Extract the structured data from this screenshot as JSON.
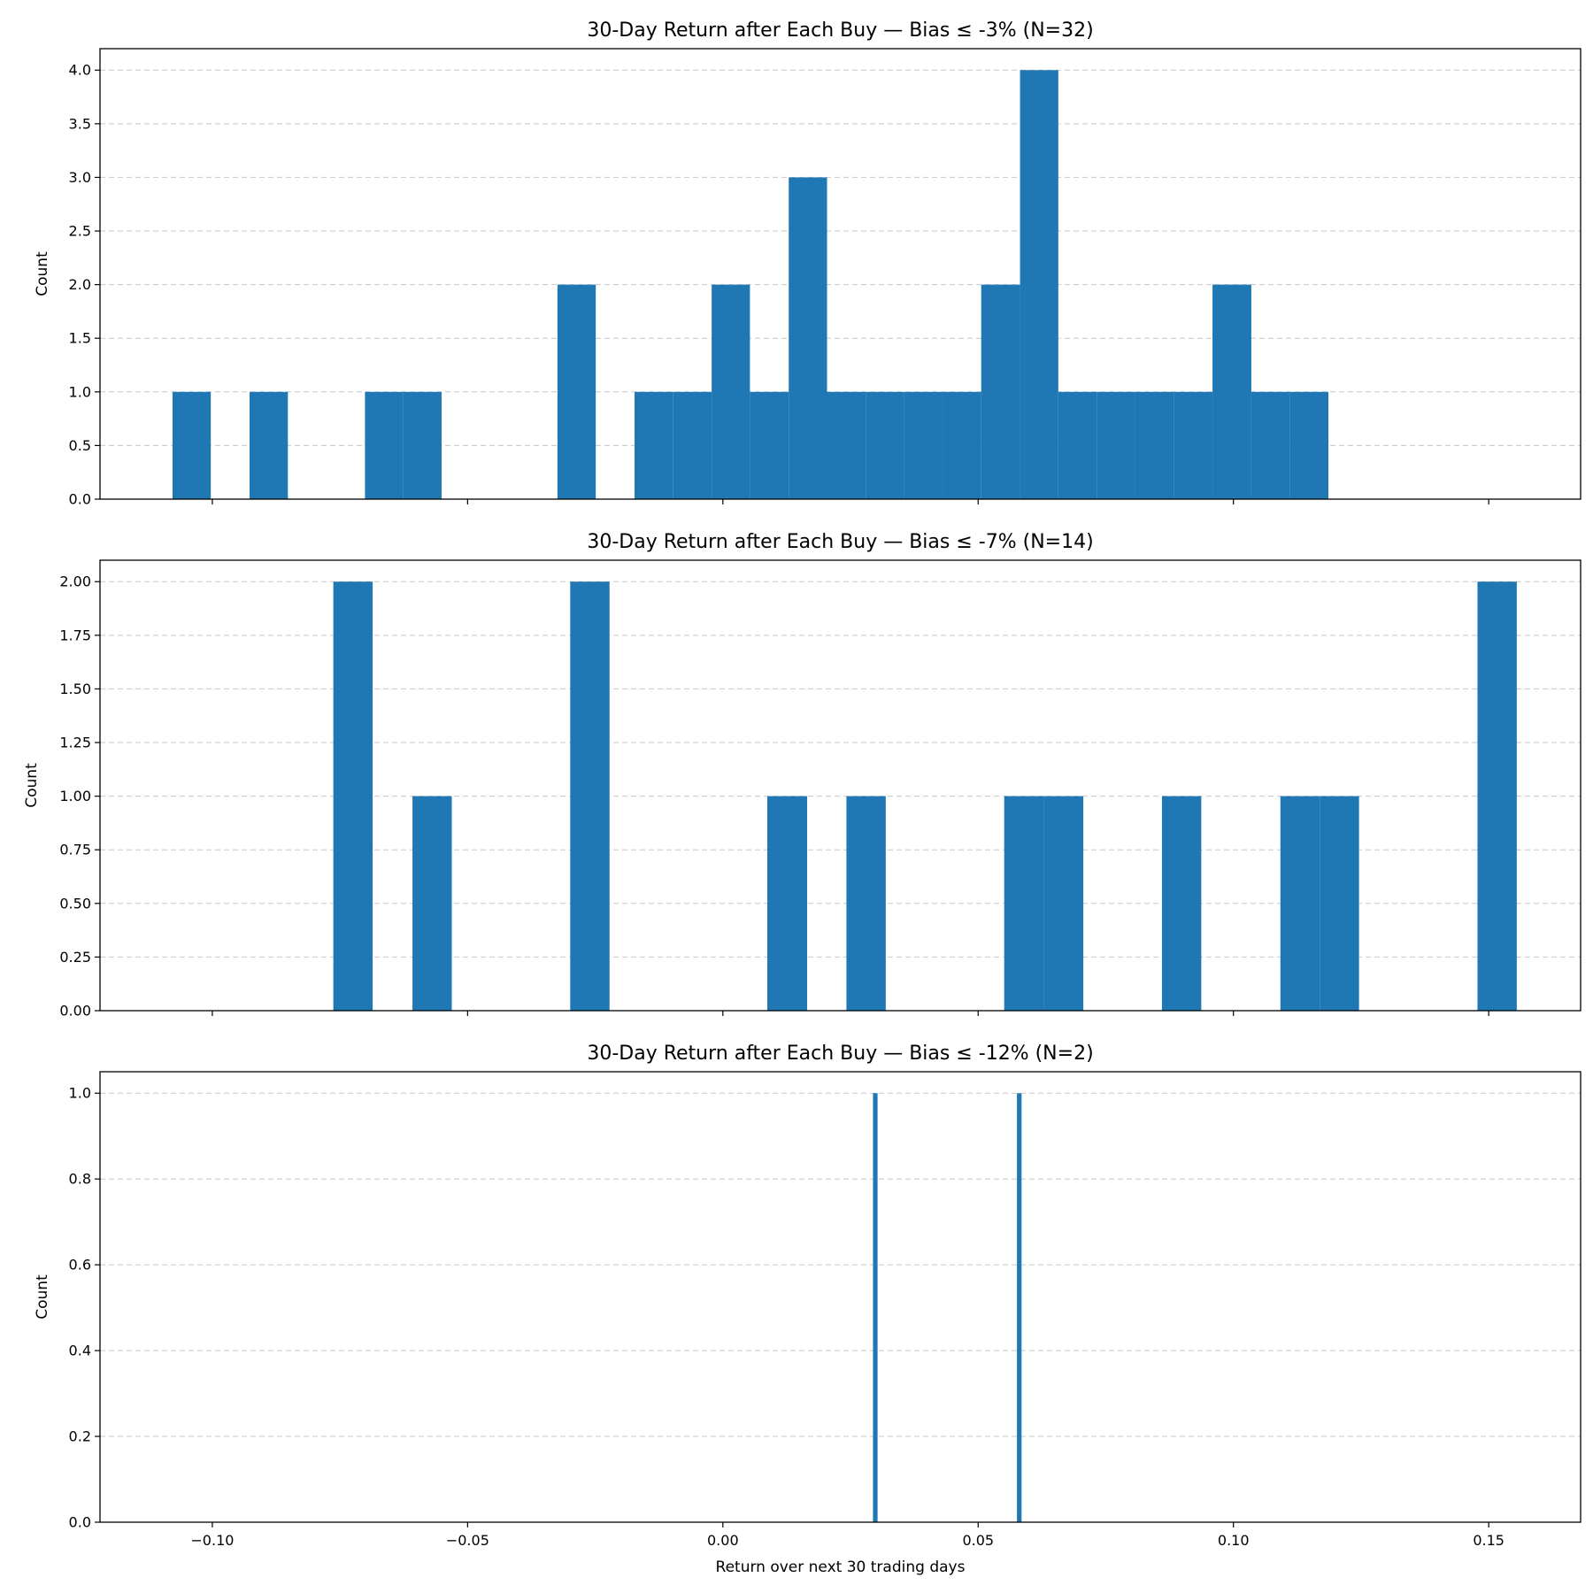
{
  "chart_data": [
    {
      "type": "bar",
      "title": "30-Day Return after Each Buy — Bias ≤ -3% (N=32)",
      "xlabel": "",
      "ylabel": "Count",
      "xlim": [
        -0.122,
        0.168
      ],
      "ylim": [
        0,
        4.2
      ],
      "yticks": [
        "0.0",
        "0.5",
        "1.0",
        "1.5",
        "2.0",
        "2.5",
        "3.0",
        "3.5",
        "4.0"
      ],
      "xticks": [
        "−0.10",
        "−0.05",
        "0.00",
        "0.05",
        "0.10",
        "0.15"
      ],
      "show_xtick_labels": false,
      "grid": "y-dashed",
      "bar_color": "#1f77b4",
      "bins": [
        {
          "x0": -0.1078,
          "x1": -0.1003,
          "count": 1
        },
        {
          "x0": -0.0927,
          "x1": -0.0852,
          "count": 1
        },
        {
          "x0": -0.0701,
          "x1": -0.0626,
          "count": 1
        },
        {
          "x0": -0.0626,
          "x1": -0.0551,
          "count": 1
        },
        {
          "x0": -0.0324,
          "x1": -0.0249,
          "count": 2
        },
        {
          "x0": -0.0173,
          "x1": -0.0098,
          "count": 1
        },
        {
          "x0": -0.0098,
          "x1": -0.0022,
          "count": 1
        },
        {
          "x0": -0.0022,
          "x1": 0.0053,
          "count": 2
        },
        {
          "x0": 0.0053,
          "x1": 0.0129,
          "count": 1
        },
        {
          "x0": 0.0129,
          "x1": 0.0204,
          "count": 3
        },
        {
          "x0": 0.0204,
          "x1": 0.028,
          "count": 1
        },
        {
          "x0": 0.028,
          "x1": 0.0355,
          "count": 1
        },
        {
          "x0": 0.0355,
          "x1": 0.0431,
          "count": 1
        },
        {
          "x0": 0.0431,
          "x1": 0.0506,
          "count": 1
        },
        {
          "x0": 0.0506,
          "x1": 0.0582,
          "count": 2
        },
        {
          "x0": 0.0582,
          "x1": 0.0657,
          "count": 4
        },
        {
          "x0": 0.0657,
          "x1": 0.0733,
          "count": 1
        },
        {
          "x0": 0.0733,
          "x1": 0.0808,
          "count": 1
        },
        {
          "x0": 0.0808,
          "x1": 0.0884,
          "count": 1
        },
        {
          "x0": 0.0884,
          "x1": 0.0959,
          "count": 1
        },
        {
          "x0": 0.0959,
          "x1": 0.1035,
          "count": 2
        },
        {
          "x0": 0.1035,
          "x1": 0.111,
          "count": 1
        },
        {
          "x0": 0.111,
          "x1": 0.1186,
          "count": 1
        }
      ]
    },
    {
      "type": "bar",
      "title": "30-Day Return after Each Buy — Bias ≤ -7% (N=14)",
      "xlabel": "",
      "ylabel": "Count",
      "xlim": [
        -0.122,
        0.168
      ],
      "ylim": [
        0,
        2.1
      ],
      "yticks": [
        "0.00",
        "0.25",
        "0.50",
        "0.75",
        "1.00",
        "1.25",
        "1.50",
        "1.75",
        "2.00"
      ],
      "xticks": [
        "−0.10",
        "−0.05",
        "0.00",
        "0.05",
        "0.10",
        "0.15"
      ],
      "show_xtick_labels": false,
      "grid": "y-dashed",
      "bar_color": "#1f77b4",
      "bins": [
        {
          "x0": -0.0763,
          "x1": -0.0686,
          "count": 2
        },
        {
          "x0": -0.0608,
          "x1": -0.0531,
          "count": 1
        },
        {
          "x0": -0.0299,
          "x1": -0.0222,
          "count": 2
        },
        {
          "x0": 0.0087,
          "x1": 0.0165,
          "count": 1
        },
        {
          "x0": 0.0242,
          "x1": 0.0319,
          "count": 1
        },
        {
          "x0": 0.0551,
          "x1": 0.0628,
          "count": 1
        },
        {
          "x0": 0.0628,
          "x1": 0.0706,
          "count": 1
        },
        {
          "x0": 0.086,
          "x1": 0.0937,
          "count": 1
        },
        {
          "x0": 0.1092,
          "x1": 0.1169,
          "count": 1
        },
        {
          "x0": 0.1169,
          "x1": 0.1246,
          "count": 1
        },
        {
          "x0": 0.1478,
          "x1": 0.1555,
          "count": 2
        }
      ]
    },
    {
      "type": "bar",
      "title": "30-Day Return after Each Buy — Bias ≤ -12% (N=2)",
      "xlabel": "Return over next 30 trading days",
      "ylabel": "Count",
      "xlim": [
        -0.122,
        0.168
      ],
      "ylim": [
        0,
        1.05
      ],
      "yticks": [
        "0.0",
        "0.2",
        "0.4",
        "0.6",
        "0.8",
        "1.0"
      ],
      "xticks": [
        "−0.10",
        "−0.05",
        "0.00",
        "0.05",
        "0.10",
        "0.15"
      ],
      "show_xtick_labels": true,
      "grid": "y-dashed",
      "bar_color": "#1f77b4",
      "bins": [
        {
          "x0": 0.0294,
          "x1": 0.0303,
          "count": 1
        },
        {
          "x0": 0.0576,
          "x1": 0.0585,
          "count": 1
        }
      ]
    }
  ]
}
